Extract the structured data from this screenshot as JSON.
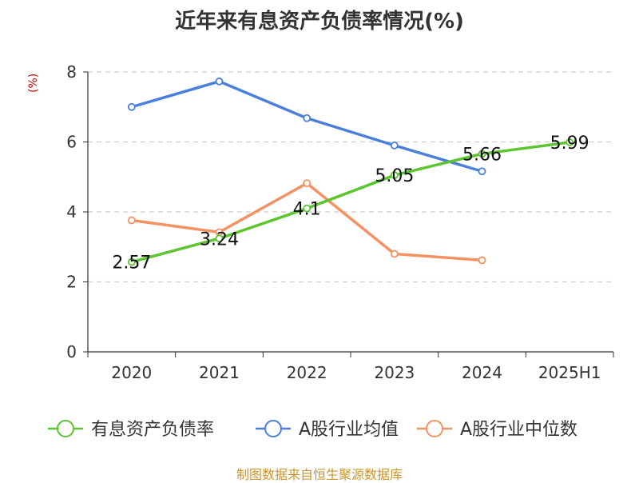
{
  "title": "近年来有息资产负债率情况(%)",
  "source": "制图数据来自恒生聚源数据库",
  "chart_data": {
    "type": "line",
    "title": "近年来有息资产负债率情况(%)",
    "ylabel": "(%)",
    "xlabel": "",
    "categories": [
      "2020",
      "2021",
      "2022",
      "2023",
      "2024",
      "2025H1"
    ],
    "ylim": [
      0,
      8
    ],
    "yticks": [
      0,
      2,
      4,
      6,
      8
    ],
    "grid": true,
    "legend_position": "bottom",
    "series": [
      {
        "name": "有息资产负债率",
        "color": "#5cc52f",
        "values": [
          2.57,
          3.24,
          4.1,
          5.05,
          5.66,
          5.99
        ],
        "labels": true
      },
      {
        "name": "A股行业均值",
        "color": "#4a7fdb",
        "values": [
          7.0,
          7.73,
          6.68,
          5.9,
          5.16,
          null
        ],
        "labels": false
      },
      {
        "name": "A股行业中位数",
        "color": "#f39262",
        "values": [
          3.76,
          3.42,
          4.82,
          2.8,
          2.62,
          null
        ],
        "labels": false
      }
    ]
  }
}
